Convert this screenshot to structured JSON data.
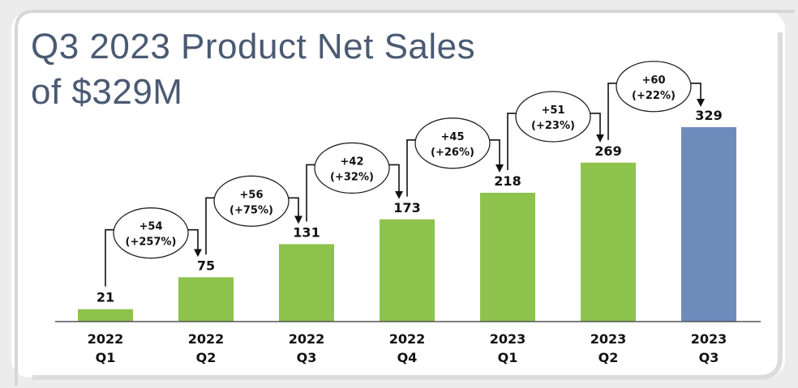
{
  "title_line1": "Q3 2023 Product Net Sales",
  "title_line2": "of $329M",
  "chart_data": {
    "type": "bar",
    "categories": [
      [
        "2022",
        "Q1"
      ],
      [
        "2022",
        "Q2"
      ],
      [
        "2022",
        "Q3"
      ],
      [
        "2022",
        "Q4"
      ],
      [
        "2023",
        "Q1"
      ],
      [
        "2023",
        "Q2"
      ],
      [
        "2023",
        "Q3"
      ]
    ],
    "values": [
      21,
      75,
      131,
      173,
      218,
      269,
      329
    ],
    "ylim": [
      0,
      329
    ],
    "grid": false,
    "colors": [
      "#8dc24c",
      "#8dc24c",
      "#8dc24c",
      "#8dc24c",
      "#8dc24c",
      "#8dc24c",
      "#6d8cba"
    ],
    "annotations": [
      {
        "delta": "+54",
        "pct": "(+257%)"
      },
      {
        "delta": "+56",
        "pct": "(+75%)"
      },
      {
        "delta": "+42",
        "pct": "(+32%)"
      },
      {
        "delta": "+45",
        "pct": "(+26%)"
      },
      {
        "delta": "+51",
        "pct": "(+23%)"
      },
      {
        "delta": "+60",
        "pct": "(+22%)"
      }
    ]
  }
}
